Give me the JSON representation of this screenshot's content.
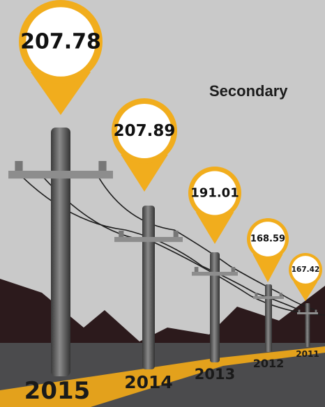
{
  "title": "Secondary",
  "items": [
    {
      "year": "2015",
      "value": "207.78"
    },
    {
      "year": "2014",
      "value": "207.89"
    },
    {
      "year": "2013",
      "value": "191.01"
    },
    {
      "year": "2012",
      "value": "168.59"
    },
    {
      "year": "2011",
      "value": "167.42"
    }
  ]
}
